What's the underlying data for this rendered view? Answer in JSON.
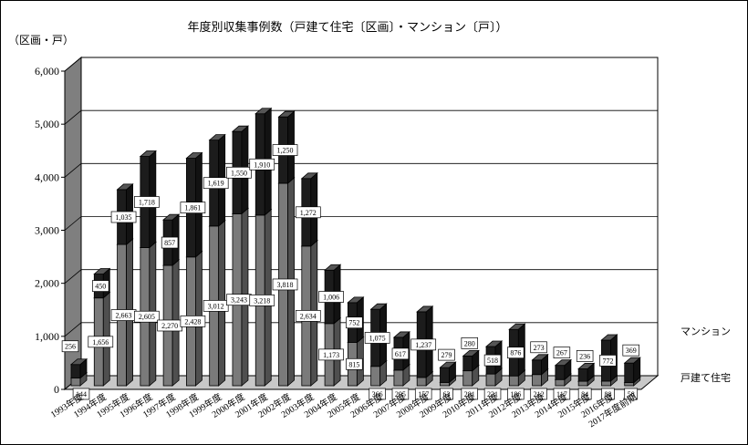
{
  "colors": {
    "house": "#7a7a7a",
    "mansion": "#1c1c1c",
    "wall": "#7f7f7f",
    "floor": "#c8c8c8"
  },
  "chart_data": {
    "type": "bar",
    "stacked": true,
    "three_d": true,
    "title": "年度別収集事例数（戸建て住宅〔区画〕・マンション〔戸〕）",
    "ylabel": "（区画・戸）",
    "ylim": [
      0,
      6000
    ],
    "yticks": [
      0,
      1000,
      2000,
      3000,
      4000,
      5000,
      6000
    ],
    "ytick_labels": [
      "0",
      "1,000",
      "2,000",
      "3,000",
      "4,000",
      "5,000",
      "6,000"
    ],
    "grid": true,
    "categories": [
      "1993年度",
      "1994年度",
      "1995年度",
      "1996年度",
      "1997年度",
      "1998年度",
      "1999年度",
      "2000年度",
      "2001年度",
      "2002年度",
      "2003年度",
      "2004年度",
      "2005年度",
      "2006年度",
      "2007年度",
      "2008年度",
      "2009年度",
      "2010年度",
      "2011年度",
      "2012年度",
      "2013年度",
      "2014年度",
      "2015年度",
      "2016年度",
      "2017年度前期"
    ],
    "series": [
      {
        "name": "戸建て住宅",
        "values": [
          144,
          1656,
          2663,
          2605,
          2270,
          2428,
          3012,
          3243,
          3218,
          3818,
          2634,
          1173,
          815,
          366,
          295,
          157,
          63,
          281,
          221,
          186,
          212,
          117,
          84,
          88,
          58
        ],
        "labels": [
          "144",
          "1,656",
          "2,663",
          "2,605",
          "2,270",
          "2,428",
          "3,012",
          "3,243",
          "3,218",
          "3,818",
          "2,634",
          "1,173",
          "815",
          "366",
          "295",
          "157",
          "63",
          "281",
          "221",
          "186",
          "212",
          "117",
          "84",
          "88",
          "58"
        ]
      },
      {
        "name": "マンション",
        "values": [
          256,
          450,
          1035,
          1718,
          857,
          1861,
          1619,
          1550,
          1910,
          1250,
          1272,
          1006,
          752,
          1075,
          617,
          1237,
          279,
          280,
          518,
          876,
          273,
          267,
          236,
          772,
          369
        ],
        "labels": [
          "256",
          "450",
          "1,035",
          "1,718",
          "857",
          "1,861",
          "1,619",
          "1,550",
          "1,910",
          "1,250",
          "1,272",
          "1,006",
          "752",
          "1,075",
          "617",
          "1,237",
          "279",
          "280",
          "518",
          "876",
          "273",
          "267",
          "236",
          "772",
          "369"
        ]
      }
    ]
  }
}
